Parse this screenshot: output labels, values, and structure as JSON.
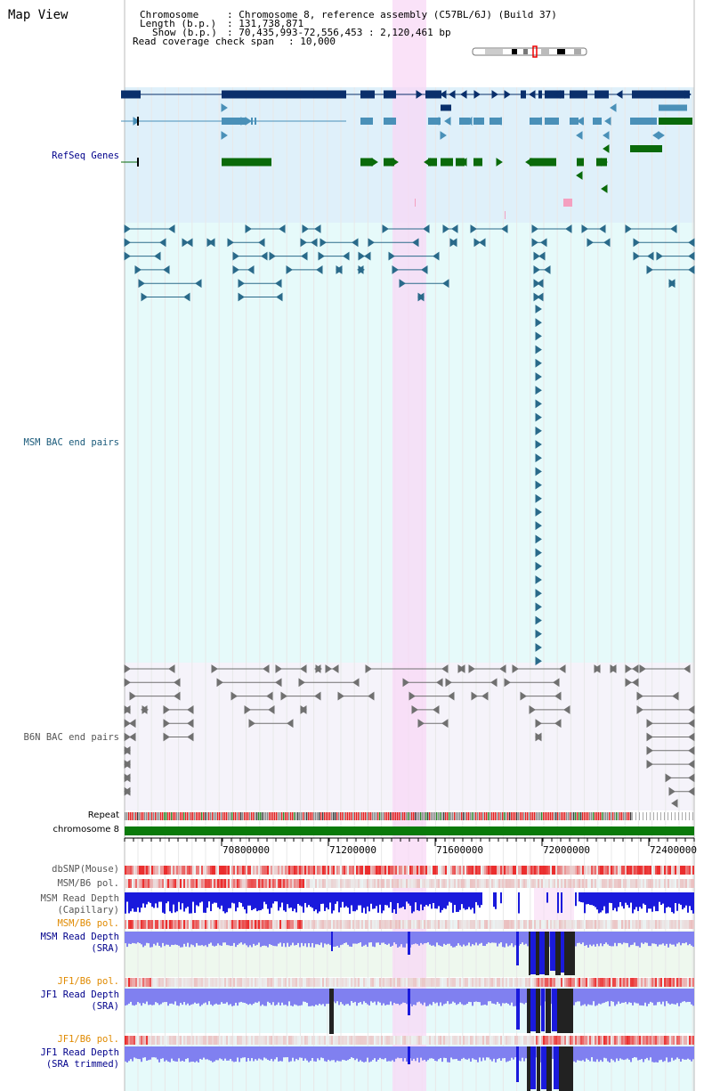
{
  "title": "Map View",
  "info": {
    "chromosome_key": "Chromosome",
    "chromosome_val": ": Chromosome 8, reference assembly (C57BL/6J) (Build 37)",
    "length_key": "Length (b.p.)",
    "length_val": ": 131,738,871",
    "show_key": "Show (b.p.)",
    "show_val": ": 70,435,993-72,556,453 : 2,120,461 bp",
    "coverage_key": "Read coverage check span",
    "coverage_val": ": 10,000"
  },
  "tracks": {
    "refseq": "RefSeq Genes",
    "msm_bac": "MSM BAC end pairs",
    "b6n_bac": "B6N BAC end pairs",
    "repeat": "Repeat",
    "chromosome": "chromosome 8",
    "dbsnp": "dbSNP(Mouse)",
    "msm_b6_pol_1": "MSM/B6 pol.",
    "msm_depth_cap": "MSM Read Depth\n(Capillary)",
    "msm_b6_pol_2": "MSM/B6 pol.",
    "msm_depth_sra": "MSM Read Depth\n(SRA)",
    "jf1_b6_pol_1": "JF1/B6 pol.",
    "jf1_depth_sra": "JF1 Read Depth\n(SRA)",
    "jf1_b6_pol_2": "JF1/B6 pol.",
    "jf1_depth_trim": "JF1 Read Depth\n(SRA trimmed)"
  },
  "axis_ticks": [
    "70800000",
    "71200000",
    "71600000",
    "72000000",
    "72400000"
  ],
  "colors": {
    "refseq_bg": "#dff0fa",
    "msm_bg": "#e6fafa",
    "b6n_bg": "#f5f3fa",
    "highlight": "#f8d8f5",
    "gene_dark": "#0a2f6b",
    "gene_mid": "#4a90b8",
    "gene_green": "#0a6a0a",
    "bac_line": "#2a6a8a",
    "b6n_line": "#707070",
    "chromosome": "#0a7a0a",
    "depth_blue": "#1a1adc",
    "depth_light": "#8080f0",
    "pol_red": "#e85050",
    "label_blue": "#00008b",
    "label_orange": "#e08a00",
    "label_teal": "#1a5a7a"
  }
}
